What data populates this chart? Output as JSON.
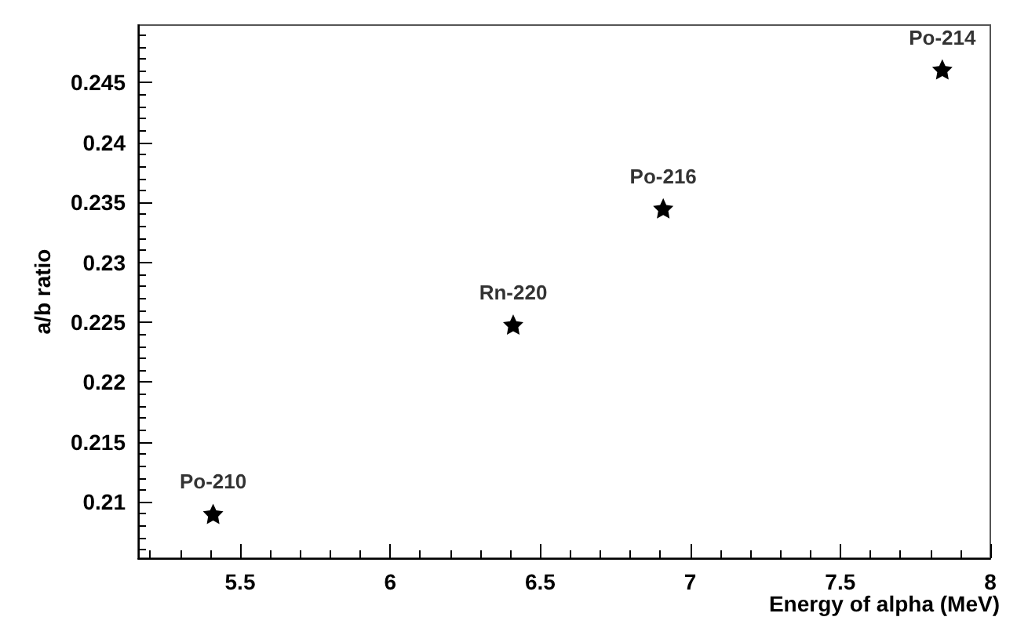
{
  "chart_data": {
    "type": "scatter",
    "xlabel": "Energy of alpha (MeV)",
    "ylabel": "a/b ratio",
    "x": [
      5.41,
      6.41,
      6.91,
      7.84
    ],
    "series": [
      {
        "color": "#000000",
        "values": [
          0.209,
          0.2248,
          0.2345,
          0.2461
        ]
      }
    ],
    "xlim": [
      5.16,
      8.0
    ],
    "xticks": [
      5.5,
      6,
      6.5,
      7,
      7.5,
      8
    ],
    "ylim": [
      0.2053,
      0.2498
    ],
    "yticks": [
      0.21,
      0.215,
      0.22,
      0.225,
      0.23,
      0.235,
      0.24,
      0.245
    ],
    "marker": "star",
    "grid": false,
    "annotations": [
      {
        "text": "Po-210",
        "x": 5.41,
        "y": 0.209
      },
      {
        "text": "Rn-220",
        "x": 6.41,
        "y": 0.2248
      },
      {
        "text": "Po-216",
        "x": 6.91,
        "y": 0.2345
      },
      {
        "text": "Po-214",
        "x": 7.84,
        "y": 0.2461
      }
    ]
  }
}
